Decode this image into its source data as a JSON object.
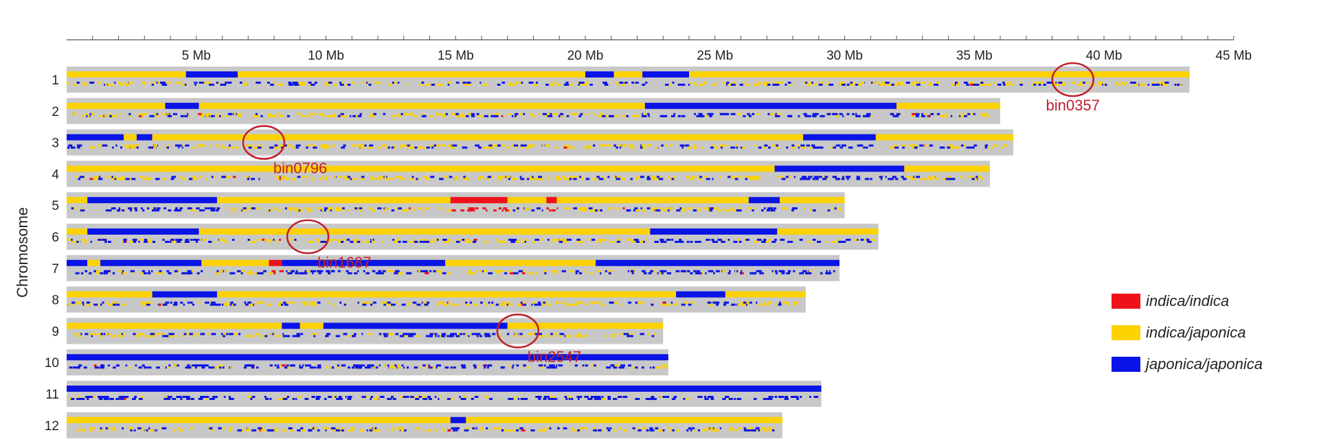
{
  "chart_data": {
    "type": "heatmap",
    "ylabel": "Chromosome",
    "x_unit": "Mb",
    "xlim": [
      0,
      45
    ],
    "x_ticks": [
      {
        "value": 5,
        "label": "5 Mb"
      },
      {
        "value": 10,
        "label": "10 Mb"
      },
      {
        "value": 15,
        "label": "15 Mb"
      },
      {
        "value": 20,
        "label": "20 Mb"
      },
      {
        "value": 25,
        "label": "25 Mb"
      },
      {
        "value": 30,
        "label": "30 Mb"
      },
      {
        "value": 35,
        "label": "35 Mb"
      },
      {
        "value": 40,
        "label": "40 Mb"
      },
      {
        "value": 45,
        "label": "45 Mb"
      }
    ],
    "minor_tick_step": 1,
    "colors": {
      "ii": "#f0101a",
      "ij": "#fcd200",
      "jj": "#0a14e6",
      "background": "#c8c8c8",
      "annotation": "#c0202e"
    },
    "legend": {
      "position": "right",
      "entries": [
        {
          "key": "ii",
          "label": "indica/indica"
        },
        {
          "key": "ij",
          "label": "indica/japonica"
        },
        {
          "key": "jj",
          "label": "japonica/japonica"
        }
      ]
    },
    "chromosomes": [
      {
        "label": "1",
        "length": 43.3,
        "blocks": [
          [
            0,
            4.6,
            "ij"
          ],
          [
            4.6,
            6.6,
            "jj"
          ],
          [
            6.6,
            20.0,
            "ij"
          ],
          [
            20.0,
            21.1,
            "jj"
          ],
          [
            21.1,
            22.2,
            "ij"
          ],
          [
            22.2,
            24.0,
            "jj"
          ],
          [
            24.0,
            43.3,
            "ij"
          ]
        ]
      },
      {
        "label": "2",
        "length": 36.0,
        "blocks": [
          [
            0,
            3.8,
            "ij"
          ],
          [
            3.8,
            5.1,
            "jj"
          ],
          [
            5.1,
            22.3,
            "ij"
          ],
          [
            22.3,
            32.0,
            "jj"
          ],
          [
            32.0,
            36.0,
            "ij"
          ]
        ]
      },
      {
        "label": "3",
        "length": 36.5,
        "blocks": [
          [
            0,
            2.2,
            "jj"
          ],
          [
            2.2,
            2.7,
            "ij"
          ],
          [
            2.7,
            3.3,
            "jj"
          ],
          [
            3.3,
            28.4,
            "ij"
          ],
          [
            28.4,
            31.2,
            "jj"
          ],
          [
            31.2,
            36.5,
            "ij"
          ]
        ]
      },
      {
        "label": "4",
        "length": 35.6,
        "blocks": [
          [
            0,
            27.3,
            "ij"
          ],
          [
            27.3,
            32.3,
            "jj"
          ],
          [
            32.3,
            35.6,
            "ij"
          ]
        ]
      },
      {
        "label": "5",
        "length": 30.0,
        "blocks": [
          [
            0,
            0.8,
            "ij"
          ],
          [
            0.8,
            5.8,
            "jj"
          ],
          [
            5.8,
            14.8,
            "ij"
          ],
          [
            14.8,
            17.0,
            "ii"
          ],
          [
            17.0,
            18.5,
            "ij"
          ],
          [
            18.5,
            18.9,
            "ii"
          ],
          [
            18.9,
            26.3,
            "ij"
          ],
          [
            26.3,
            27.5,
            "jj"
          ],
          [
            27.5,
            30.0,
            "ij"
          ]
        ]
      },
      {
        "label": "6",
        "length": 31.3,
        "blocks": [
          [
            0,
            0.8,
            "ij"
          ],
          [
            0.8,
            5.1,
            "jj"
          ],
          [
            5.1,
            22.5,
            "ij"
          ],
          [
            22.5,
            27.4,
            "jj"
          ],
          [
            27.4,
            31.3,
            "ij"
          ]
        ]
      },
      {
        "label": "7",
        "length": 29.8,
        "blocks": [
          [
            0,
            0.8,
            "jj"
          ],
          [
            0.8,
            1.3,
            "ij"
          ],
          [
            1.3,
            5.2,
            "jj"
          ],
          [
            5.2,
            7.8,
            "ij"
          ],
          [
            7.8,
            8.3,
            "ii"
          ],
          [
            8.3,
            14.6,
            "jj"
          ],
          [
            14.6,
            20.4,
            "ij"
          ],
          [
            20.4,
            29.8,
            "jj"
          ]
        ]
      },
      {
        "label": "8",
        "length": 28.5,
        "blocks": [
          [
            0,
            3.3,
            "ij"
          ],
          [
            3.3,
            5.8,
            "jj"
          ],
          [
            5.8,
            23.5,
            "ij"
          ],
          [
            23.5,
            25.4,
            "jj"
          ],
          [
            25.4,
            28.5,
            "ij"
          ]
        ]
      },
      {
        "label": "9",
        "length": 23.0,
        "blocks": [
          [
            0,
            8.3,
            "ij"
          ],
          [
            8.3,
            9.0,
            "jj"
          ],
          [
            9.0,
            9.9,
            "ij"
          ],
          [
            9.9,
            17.0,
            "jj"
          ],
          [
            17.0,
            23.0,
            "ij"
          ]
        ]
      },
      {
        "label": "10",
        "length": 23.2,
        "blocks": [
          [
            0,
            23.2,
            "jj"
          ]
        ]
      },
      {
        "label": "11",
        "length": 29.1,
        "blocks": [
          [
            0,
            29.1,
            "jj"
          ]
        ]
      },
      {
        "label": "12",
        "length": 27.6,
        "blocks": [
          [
            0,
            14.8,
            "ij"
          ],
          [
            14.8,
            15.4,
            "jj"
          ],
          [
            15.4,
            27.6,
            "ij"
          ]
        ]
      }
    ],
    "annotations": [
      {
        "label": "bin0357",
        "chromosome": "1",
        "position": 38.8
      },
      {
        "label": "bin0796",
        "chromosome": "3",
        "position": 7.6
      },
      {
        "label": "bin1687",
        "chromosome": "6",
        "position": 9.3
      },
      {
        "label": "bin2547",
        "chromosome": "9",
        "position": 17.4
      }
    ]
  }
}
